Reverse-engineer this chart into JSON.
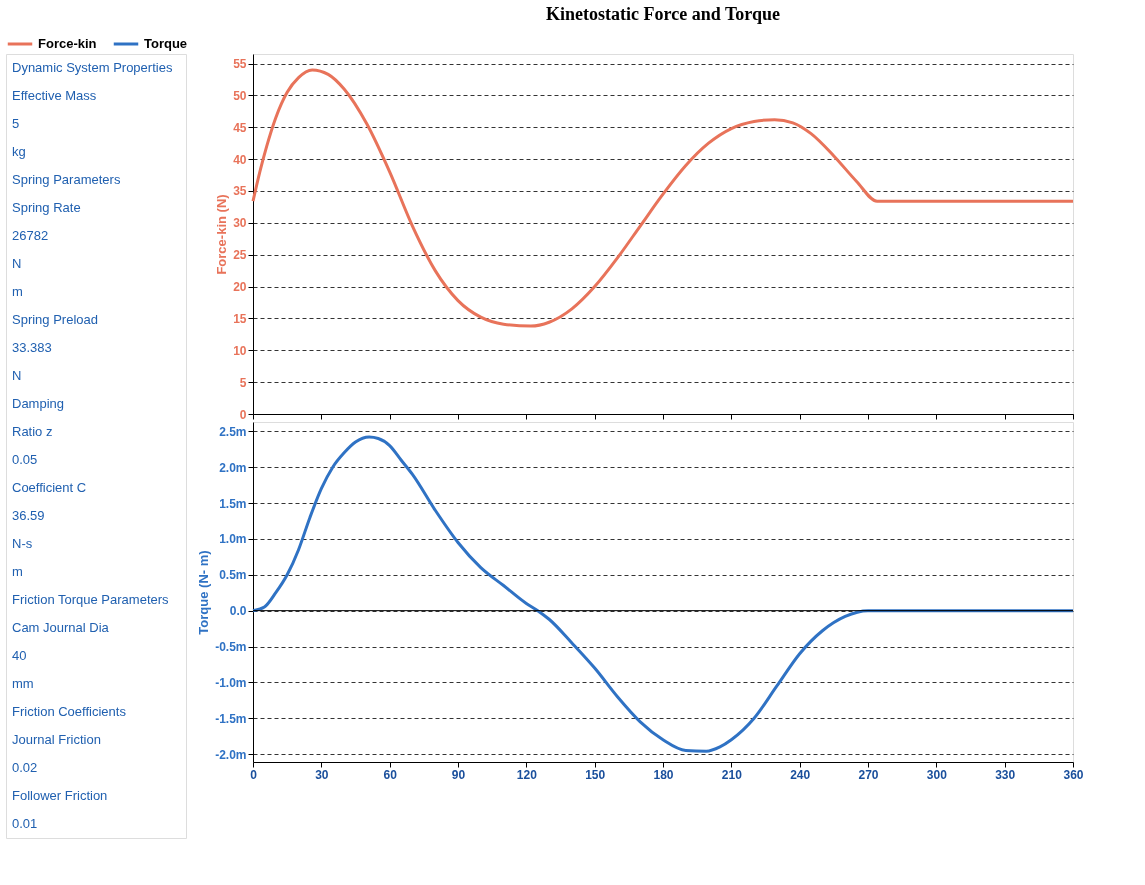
{
  "chart_data": [
    {
      "type": "other",
      "annotations": [
        "Dynamic System Properties",
        "Effective Mass",
        "5",
        "kg",
        "Spring Parameters",
        "Spring Rate",
        "26782",
        "N",
        "m",
        "Spring Preload",
        "33.383",
        "N",
        "Damping",
        "Ratio z",
        "0.05",
        "Coefficient C",
        "36.59",
        "N-s",
        "m",
        "Friction Torque Parameters",
        "Cam Journal Dia",
        "40",
        "mm",
        "Friction Coefficients",
        "Journal Friction",
        "0.02",
        "Follower Friction",
        "0.01"
      ]
    },
    {
      "type": "line",
      "title": "Kinetostatic Force and Torque",
      "ylabel": "Force-kin (N)",
      "xlim": [
        0,
        360
      ],
      "xticks": [
        0,
        30,
        60,
        90,
        120,
        150,
        180,
        210,
        240,
        270,
        300,
        330,
        360
      ],
      "ylim": [
        0,
        56.5
      ],
      "yticks": [
        0,
        5,
        10,
        15,
        20,
        25,
        30,
        35,
        40,
        45,
        50,
        55
      ],
      "grid": "y",
      "line_style": "solid",
      "legend": "top left",
      "tick_labels": "y",
      "series": [
        {
          "name": "Force-kin",
          "color": "#e8735a",
          "x": [
            0,
            3,
            6,
            10,
            15,
            20,
            26,
            33,
            40,
            50,
            60,
            70,
            80,
            90,
            100,
            110,
            122,
            130,
            140,
            150,
            160,
            170,
            180,
            190,
            200,
            210,
            220,
            229,
            237,
            245,
            255,
            265,
            274,
            290,
            360
          ],
          "values": [
            33.4,
            38,
            42,
            46.5,
            50.5,
            52.8,
            54,
            53.3,
            51,
            45.5,
            38,
            29.5,
            22.5,
            17.8,
            15.2,
            14.1,
            13.8,
            14.4,
            16.5,
            20,
            24.5,
            29.5,
            34.5,
            39,
            42.5,
            44.8,
            45.9,
            46.2,
            45.7,
            44,
            40.5,
            36.5,
            33.4,
            33.4,
            33.4
          ]
        }
      ]
    },
    {
      "type": "line",
      "ylabel": "Torque (N- m)",
      "xlim": [
        0,
        360
      ],
      "xticks": [
        0,
        30,
        60,
        90,
        120,
        150,
        180,
        210,
        240,
        270,
        300,
        330,
        360
      ],
      "ylim": [
        -2.11,
        2.63
      ],
      "yticks": [
        {
          "value": 2.5,
          "label": "2.5m"
        },
        {
          "value": 2,
          "label": "2.0m"
        },
        {
          "value": 1.5,
          "label": "1.5m"
        },
        {
          "value": 1,
          "label": "1.0m"
        },
        {
          "value": 0.5,
          "label": "0.5m"
        },
        {
          "value": 0,
          "label": "0.0"
        },
        {
          "value": -0.5,
          "label": "-0.5m"
        },
        {
          "value": -1,
          "label": "-1.0m"
        },
        {
          "value": -1.5,
          "label": "-1.5m"
        },
        {
          "value": -2,
          "label": "-2.0m"
        }
      ],
      "grid": "y",
      "line_style": "solid",
      "ref_lines": [
        {
          "axis": "y",
          "value": 0,
          "color": "#000000",
          "line_style": "solid"
        }
      ],
      "series": [
        {
          "name": "Torque",
          "color": "#2f72c4",
          "x": [
            0,
            5,
            10,
            15,
            20,
            25,
            30,
            35,
            40,
            45,
            51,
            55,
            60,
            65,
            70,
            80,
            90,
            100,
            110,
            120,
            125,
            130,
            140,
            150,
            160,
            170,
            180,
            190,
            199,
            205,
            210,
            220,
            230,
            240,
            250,
            260,
            270,
            290,
            360
          ],
          "values": [
            0,
            0.05,
            0.25,
            0.5,
            0.85,
            1.3,
            1.7,
            2.0,
            2.2,
            2.35,
            2.42,
            2.4,
            2.3,
            2.1,
            1.9,
            1.4,
            0.95,
            0.6,
            0.35,
            0.1,
            0,
            -0.12,
            -0.45,
            -0.8,
            -1.2,
            -1.55,
            -1.8,
            -1.95,
            -1.96,
            -1.9,
            -1.8,
            -1.5,
            -1.05,
            -0.6,
            -0.28,
            -0.08,
            0,
            0,
            0
          ]
        }
      ]
    }
  ]
}
